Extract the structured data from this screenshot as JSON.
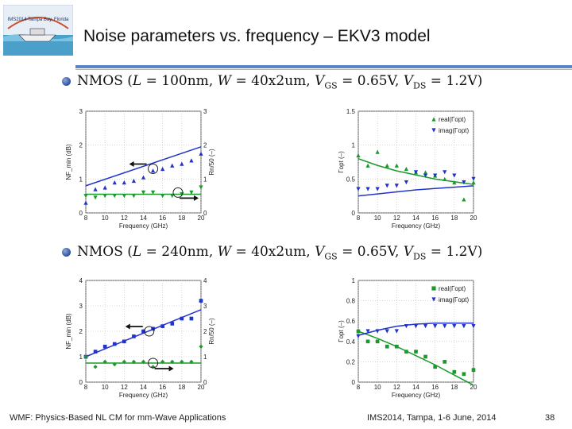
{
  "header": {
    "title": "Noise parameters vs. frequency – EKV3 model",
    "logo_text": "IMS2014 Tampa Bay, Florida"
  },
  "bullets": [
    {
      "device": "NMOS",
      "L": "100nm",
      "W": "40x2um",
      "VGS": "0.65V",
      "VDS": "1.2V"
    },
    {
      "device": "NMOS",
      "L": "240nm",
      "W": "40x2um",
      "VGS": "0.65V",
      "VDS": "1.2V"
    }
  ],
  "footer": {
    "left": "WMF: Physics-Based NL CM for mm-Wave Applications",
    "center": "IMS2014, Tampa, 1-6 June, 2014",
    "page": "38"
  },
  "colors": {
    "blue": "#2233cc",
    "green": "#1a9a2a",
    "rule": "#5b86c5"
  },
  "chart_data": [
    {
      "type": "scatter",
      "xlabel": "Frequency (GHz)",
      "ylabel": "NF_min (dB)",
      "y2label": "Rn/50 (–)",
      "xlim": [
        8,
        20
      ],
      "ylim": [
        0,
        3
      ],
      "y2lim": [
        0,
        3
      ],
      "xticks": [
        8,
        10,
        12,
        14,
        16,
        18,
        20
      ],
      "yticks": [
        0,
        1,
        2,
        3
      ],
      "y2ticks": [
        0,
        1,
        2,
        3
      ],
      "series": [
        {
          "marker": "triangle-up",
          "color": "#2233cc",
          "axis": "y",
          "x": [
            8,
            9,
            10,
            11,
            12,
            13,
            14,
            15,
            16,
            17,
            18,
            19,
            20
          ],
          "y": [
            0.3,
            0.7,
            0.75,
            0.9,
            0.9,
            0.95,
            1.05,
            1.25,
            1.3,
            1.4,
            1.45,
            1.55,
            1.75
          ]
        },
        {
          "marker": "line",
          "color": "#2233cc",
          "axis": "y",
          "x": [
            8,
            20
          ],
          "y": [
            0.8,
            1.95
          ]
        },
        {
          "marker": "triangle-down",
          "color": "#1a9a2a",
          "axis": "y2",
          "x": [
            8,
            9,
            10,
            11,
            12,
            13,
            14,
            15,
            16,
            17,
            18,
            19,
            20
          ],
          "y": [
            0.5,
            0.45,
            0.5,
            0.5,
            0.5,
            0.5,
            0.6,
            0.6,
            0.5,
            0.5,
            0.55,
            0.6,
            0.75
          ]
        },
        {
          "marker": "line",
          "color": "#1a9a2a",
          "axis": "y2",
          "x": [
            8,
            20
          ],
          "y": [
            0.55,
            0.55
          ]
        }
      ]
    },
    {
      "type": "scatter",
      "xlabel": "Frequency (GHz)",
      "ylabel": "Γopt (–)",
      "xlim": [
        8,
        20
      ],
      "ylim": [
        0,
        1.5
      ],
      "xticks": [
        8,
        10,
        12,
        14,
        16,
        18,
        20
      ],
      "yticks": [
        0,
        0.5,
        1,
        1.5
      ],
      "legend": [
        "real(Γopt)",
        "imag(Γopt)"
      ],
      "series": [
        {
          "name": "real(Γopt)",
          "marker": "triangle-up",
          "color": "#1a9a2a",
          "x": [
            8,
            9,
            10,
            11,
            12,
            13,
            14,
            15,
            16,
            17,
            18,
            19,
            20
          ],
          "y": [
            0.85,
            0.7,
            0.9,
            0.7,
            0.7,
            0.65,
            0.6,
            0.6,
            0.55,
            0.5,
            0.45,
            0.2,
            0.45
          ]
        },
        {
          "marker": "line",
          "color": "#1a9a2a",
          "x": [
            8,
            10,
            12,
            14,
            16,
            18,
            20
          ],
          "y": [
            0.8,
            0.7,
            0.62,
            0.56,
            0.5,
            0.46,
            0.42
          ]
        },
        {
          "name": "imag(Γopt)",
          "marker": "triangle-down",
          "color": "#2233cc",
          "x": [
            8,
            9,
            10,
            11,
            12,
            13,
            14,
            15,
            16,
            17,
            18,
            19,
            20
          ],
          "y": [
            0.35,
            0.35,
            0.35,
            0.4,
            0.4,
            0.45,
            0.6,
            0.55,
            0.55,
            0.6,
            0.55,
            0.45,
            0.5
          ]
        },
        {
          "marker": "line",
          "color": "#2233cc",
          "x": [
            8,
            10,
            12,
            14,
            16,
            18,
            20
          ],
          "y": [
            0.25,
            0.28,
            0.31,
            0.34,
            0.36,
            0.38,
            0.4
          ]
        }
      ]
    },
    {
      "type": "scatter",
      "xlabel": "Frequency (GHz)",
      "ylabel": "NF_min (dB)",
      "y2label": "Rn/50 (–)",
      "xlim": [
        8,
        20
      ],
      "ylim": [
        0,
        4
      ],
      "y2lim": [
        0,
        4
      ],
      "xticks": [
        8,
        10,
        12,
        14,
        16,
        18,
        20
      ],
      "yticks": [
        0,
        1,
        2,
        3,
        4
      ],
      "y2ticks": [
        0,
        1,
        2,
        3,
        4
      ],
      "series": [
        {
          "marker": "square",
          "color": "#2233cc",
          "axis": "y",
          "x": [
            8,
            9,
            10,
            11,
            12,
            13,
            14,
            15,
            16,
            17,
            18,
            19,
            20
          ],
          "y": [
            1.0,
            1.2,
            1.4,
            1.5,
            1.6,
            1.8,
            2.0,
            2.1,
            2.2,
            2.3,
            2.5,
            2.5,
            3.2
          ]
        },
        {
          "marker": "line",
          "color": "#2233cc",
          "axis": "y",
          "x": [
            8,
            20
          ],
          "y": [
            1.0,
            2.85
          ]
        },
        {
          "marker": "diamond",
          "color": "#1a9a2a",
          "axis": "y2",
          "x": [
            8,
            9,
            10,
            11,
            12,
            13,
            14,
            15,
            16,
            17,
            18,
            19,
            20
          ],
          "y": [
            1.0,
            0.6,
            0.8,
            0.7,
            0.8,
            0.8,
            0.8,
            0.6,
            0.8,
            0.8,
            0.8,
            0.8,
            1.4
          ]
        },
        {
          "marker": "line",
          "color": "#1a9a2a",
          "axis": "y2",
          "x": [
            8,
            20
          ],
          "y": [
            0.75,
            0.75
          ]
        }
      ]
    },
    {
      "type": "scatter",
      "xlabel": "Frequency (GHz)",
      "ylabel": "Γopt (–)",
      "xlim": [
        8,
        20
      ],
      "ylim": [
        0,
        1
      ],
      "xticks": [
        8,
        10,
        12,
        14,
        16,
        18,
        20
      ],
      "yticks": [
        0,
        0.2,
        0.4,
        0.6,
        0.8,
        1
      ],
      "legend": [
        "real(Γopt)",
        "imag(Γopt)"
      ],
      "series": [
        {
          "name": "real(Γopt)",
          "marker": "square",
          "color": "#1a9a2a",
          "x": [
            8,
            9,
            10,
            11,
            12,
            13,
            14,
            15,
            16,
            17,
            18,
            19,
            20
          ],
          "y": [
            0.5,
            0.4,
            0.4,
            0.35,
            0.35,
            0.3,
            0.3,
            0.25,
            0.15,
            0.2,
            0.1,
            0.08,
            0.12
          ]
        },
        {
          "marker": "line",
          "color": "#1a9a2a",
          "x": [
            8,
            10,
            12,
            14,
            16,
            18,
            20
          ],
          "y": [
            0.5,
            0.43,
            0.35,
            0.26,
            0.17,
            0.07,
            -0.03
          ]
        },
        {
          "name": "imag(Γopt)",
          "marker": "triangle-down",
          "color": "#2233cc",
          "x": [
            8,
            9,
            10,
            11,
            12,
            13,
            14,
            15,
            16,
            17,
            18,
            19,
            20
          ],
          "y": [
            0.45,
            0.5,
            0.5,
            0.5,
            0.5,
            0.55,
            0.55,
            0.55,
            0.55,
            0.55,
            0.55,
            0.55,
            0.55
          ]
        },
        {
          "marker": "line",
          "color": "#2233cc",
          "x": [
            8,
            10,
            12,
            14,
            16,
            18,
            20
          ],
          "y": [
            0.46,
            0.51,
            0.55,
            0.57,
            0.58,
            0.58,
            0.58
          ]
        }
      ]
    }
  ]
}
